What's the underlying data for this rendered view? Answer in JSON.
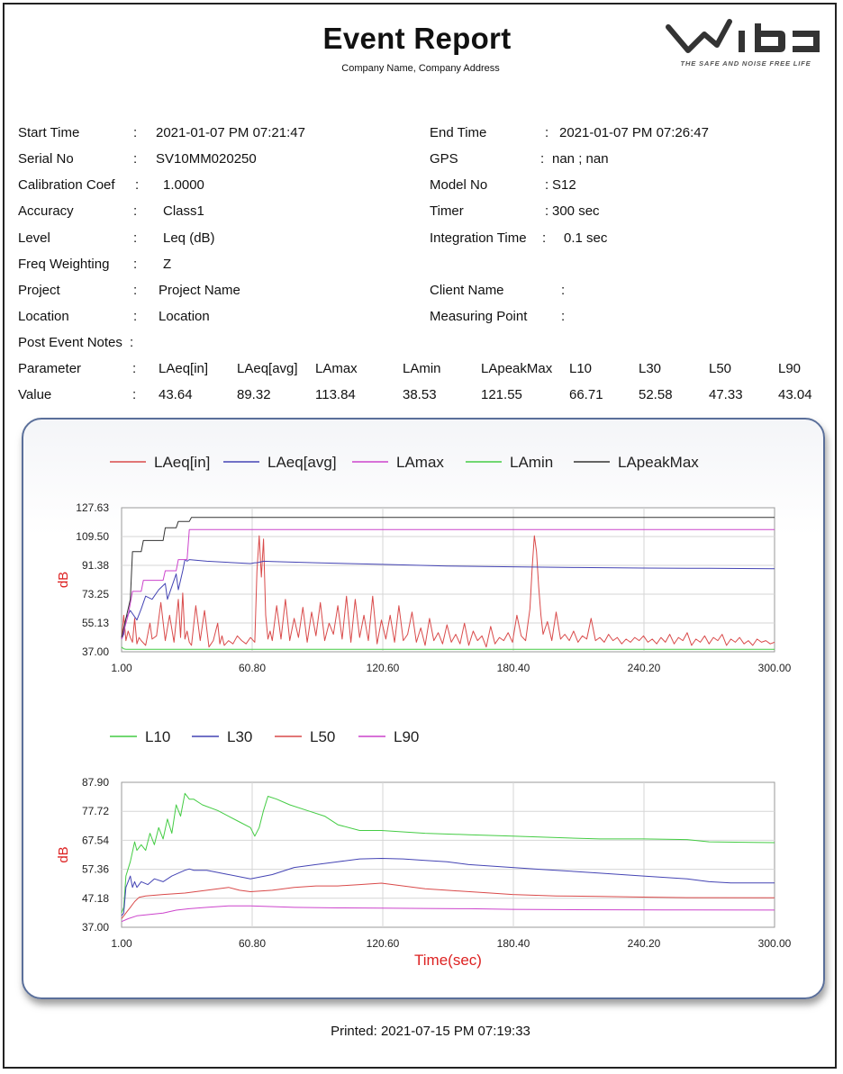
{
  "header": {
    "title": "Event Report",
    "subtitle": "Company Name, Company Address",
    "logo_tagline": "THE SAFE AND NOISE FREE LIFE",
    "logo_text": "ViB"
  },
  "info_left": [
    {
      "label": "Start Time",
      "value": "2021-01-07 PM 07:21:47"
    },
    {
      "label": "Serial No",
      "value": "SV10MM020250"
    },
    {
      "label": "Calibration Coef",
      "value": "1.0000"
    },
    {
      "label": "Accuracy",
      "value": "Class1"
    },
    {
      "label": "Level",
      "value": "Leq (dB)"
    },
    {
      "label": "Freq Weighting",
      "value": "Z"
    },
    {
      "label": "Project",
      "value": "Project Name"
    },
    {
      "label": "Location",
      "value": "Location"
    },
    {
      "label": "Post Event Notes",
      "value": ""
    }
  ],
  "info_right": [
    {
      "label": "End Time",
      "value": "2021-01-07 PM 07:26:47"
    },
    {
      "label": "GPS",
      "value": "nan ; nan"
    },
    {
      "label": "Model No",
      "value": "S12"
    },
    {
      "label": "Timer",
      "value": "300 sec"
    },
    {
      "label": "Integration Time",
      "value": "0.1 sec"
    },
    {
      "label": "Client Name",
      "value": ""
    },
    {
      "label": "Measuring Point",
      "value": ""
    }
  ],
  "colon": ":",
  "params": {
    "label_parameter": "Parameter",
    "label_value": "Value",
    "names": [
      "LAeq[in]",
      "LAeq[avg]",
      "LAmax",
      "LAmin",
      "LApeakMax",
      "L10",
      "L30",
      "L50",
      "L90"
    ],
    "values": [
      "43.64",
      "89.32",
      "113.84",
      "38.53",
      "121.55",
      "66.71",
      "52.58",
      "47.33",
      "43.04"
    ]
  },
  "footer": {
    "printed": "Printed: 2021-07-15 PM 07:19:33"
  },
  "chart_data": [
    {
      "type": "line",
      "ylabel": "dB",
      "xlabel": "",
      "xlim": [
        1.0,
        300.0
      ],
      "ylim": [
        37.0,
        127.63
      ],
      "xticks": [
        "1.00",
        "60.80",
        "120.60",
        "180.40",
        "240.20",
        "300.00"
      ],
      "yticks": [
        "37.00",
        "55.13",
        "73.25",
        "91.38",
        "109.50",
        "127.63"
      ],
      "grid": true,
      "legend_position": "top",
      "series": [
        {
          "name": "LAeq[in]",
          "color": "#d94a4a",
          "x": [
            1,
            2,
            3,
            4,
            5,
            6,
            7,
            8,
            9,
            10,
            12,
            14,
            15,
            17,
            19,
            21,
            23,
            25,
            27,
            28,
            29,
            30,
            31,
            32,
            33,
            35,
            37,
            39,
            41,
            43,
            45,
            46,
            47,
            48,
            50,
            52,
            54,
            56,
            58,
            60,
            62,
            63,
            64,
            65,
            66,
            67,
            68,
            69,
            70,
            72,
            74,
            76,
            78,
            80,
            82,
            84,
            86,
            88,
            90,
            92,
            94,
            96,
            98,
            100,
            102,
            104,
            106,
            108,
            110,
            112,
            114,
            116,
            118,
            120,
            122,
            124,
            126,
            128,
            130,
            132,
            134,
            136,
            138,
            140,
            142,
            144,
            146,
            148,
            150,
            152,
            154,
            156,
            158,
            160,
            162,
            164,
            166,
            168,
            170,
            172,
            174,
            176,
            178,
            180,
            182,
            184,
            186,
            188,
            189,
            190,
            191,
            192,
            193,
            194,
            196,
            198,
            200,
            202,
            204,
            206,
            208,
            210,
            212,
            214,
            216,
            218,
            220,
            222,
            224,
            226,
            228,
            230,
            232,
            234,
            236,
            238,
            240,
            242,
            244,
            246,
            248,
            250,
            252,
            254,
            256,
            258,
            260,
            262,
            264,
            266,
            268,
            270,
            272,
            274,
            276,
            278,
            280,
            282,
            284,
            286,
            288,
            290,
            292,
            294,
            296,
            298,
            300
          ],
          "values": [
            45,
            60,
            44,
            50,
            46,
            43,
            58,
            42,
            46,
            44,
            41,
            55,
            45,
            47,
            68,
            44,
            60,
            43,
            70,
            46,
            74,
            45,
            50,
            43,
            41,
            66,
            44,
            63,
            40,
            44,
            55,
            42,
            47,
            41,
            44,
            42,
            47,
            44,
            42,
            46,
            43,
            88,
            110,
            84,
            108,
            60,
            45,
            50,
            44,
            66,
            45,
            70,
            44,
            58,
            46,
            65,
            43,
            62,
            47,
            68,
            44,
            55,
            48,
            66,
            45,
            72,
            43,
            70,
            46,
            60,
            44,
            72,
            42,
            57,
            45,
            60,
            43,
            66,
            44,
            48,
            62,
            43,
            52,
            41,
            58,
            44,
            49,
            42,
            54,
            43,
            48,
            42,
            55,
            41,
            50,
            44,
            47,
            40,
            53,
            42,
            46,
            44,
            49,
            43,
            60,
            47,
            44,
            64,
            90,
            110,
            100,
            78,
            60,
            48,
            56,
            44,
            62,
            45,
            48,
            44,
            50,
            43,
            47,
            45,
            58,
            44,
            46,
            43,
            48,
            44,
            46,
            42,
            45,
            43,
            46,
            44,
            47,
            43,
            45,
            42,
            46,
            43,
            48,
            42,
            46,
            44,
            49,
            41,
            45,
            43,
            47,
            42,
            46,
            44,
            48,
            41,
            45,
            43,
            46,
            42,
            44,
            41,
            45,
            43,
            44,
            42,
            43
          ]
        },
        {
          "name": "LAeq[avg]",
          "color": "#4444b4",
          "x": [
            1,
            2,
            3,
            5,
            8,
            10,
            12,
            15,
            18,
            21,
            22,
            24,
            26,
            27,
            29,
            30,
            31,
            32,
            40,
            60,
            62,
            63,
            66,
            70,
            90,
            120,
            150,
            180,
            210,
            240,
            270,
            300
          ],
          "values": [
            45,
            48,
            58,
            63,
            57,
            64,
            72,
            70,
            76,
            80,
            70,
            78,
            86,
            76,
            88,
            95,
            94,
            95,
            94,
            92.5,
            93,
            93,
            94,
            93.8,
            93,
            92,
            91,
            90.5,
            90,
            89.7,
            89.5,
            89.3
          ]
        },
        {
          "name": "LAmax",
          "color": "#cc44cc",
          "x": [
            1,
            4,
            6,
            10,
            11,
            20,
            21,
            26,
            27,
            31,
            32,
            300
          ],
          "values": [
            45,
            60,
            75,
            75,
            82,
            82,
            88,
            88,
            95,
            95,
            113.84,
            113.84
          ]
        },
        {
          "name": "LAmin",
          "color": "#44cc44",
          "x": [
            1,
            2,
            3,
            300
          ],
          "values": [
            40,
            38.8,
            38.53,
            38.53
          ]
        },
        {
          "name": "LApeakMax",
          "color": "#333333",
          "x": [
            1,
            5,
            6,
            10,
            11,
            20,
            21,
            26,
            27,
            32,
            33,
            300
          ],
          "values": [
            46,
            70,
            100,
            100,
            107,
            107,
            115,
            115,
            119,
            119,
            121.55,
            121.55
          ]
        }
      ]
    },
    {
      "type": "line",
      "ylabel": "dB",
      "xlabel": "Time(sec)",
      "xlim": [
        1.0,
        300.0
      ],
      "ylim": [
        37.0,
        87.9
      ],
      "xticks": [
        "1.00",
        "60.80",
        "120.60",
        "180.40",
        "240.20",
        "300.00"
      ],
      "yticks": [
        "37.00",
        "47.18",
        "57.36",
        "67.54",
        "77.72",
        "87.90"
      ],
      "grid": true,
      "legend_position": "top",
      "series": [
        {
          "name": "L10",
          "color": "#44cc44",
          "x": [
            1,
            2,
            3,
            5,
            7,
            8,
            10,
            12,
            14,
            16,
            18,
            20,
            22,
            24,
            26,
            28,
            30,
            32,
            34,
            38,
            45,
            55,
            60,
            62,
            64,
            66,
            68,
            72,
            78,
            86,
            94,
            100,
            110,
            120,
            140,
            160,
            180,
            200,
            220,
            240,
            260,
            270,
            290,
            300
          ],
          "values": [
            42,
            44,
            55,
            60,
            67,
            64,
            66,
            64,
            70,
            66,
            72,
            68,
            75,
            70,
            80,
            76,
            84,
            82,
            82,
            80,
            78,
            74,
            72,
            69,
            72,
            78,
            83,
            82,
            80,
            78,
            76,
            73,
            71,
            71,
            70,
            69.5,
            69,
            68.5,
            68,
            68,
            67.8,
            67,
            66.8,
            66.71
          ]
        },
        {
          "name": "L30",
          "color": "#4444b4",
          "x": [
            1,
            2,
            3,
            5,
            6,
            7,
            8,
            10,
            13,
            16,
            20,
            24,
            30,
            32,
            34,
            40,
            50,
            60,
            70,
            80,
            90,
            100,
            110,
            120,
            130,
            140,
            150,
            160,
            170,
            180,
            190,
            200,
            220,
            240,
            260,
            270,
            280,
            300
          ],
          "values": [
            41,
            42,
            51,
            55,
            51,
            53,
            51,
            53,
            52,
            54,
            53,
            55,
            57,
            57.5,
            57,
            57,
            55.5,
            54,
            55.5,
            58,
            59,
            60,
            61,
            61.2,
            61,
            60.5,
            60,
            59,
            58.5,
            58,
            57.5,
            57,
            56,
            55,
            54,
            53,
            52.6,
            52.58
          ]
        },
        {
          "name": "L50",
          "color": "#d94a4a",
          "x": [
            1,
            3,
            5,
            7,
            9,
            12,
            20,
            30,
            40,
            50,
            55,
            60,
            70,
            80,
            90,
            100,
            110,
            120,
            130,
            140,
            150,
            170,
            180,
            200,
            220,
            240,
            260,
            300
          ],
          "values": [
            40,
            42,
            44,
            46,
            47.5,
            48,
            48.5,
            49,
            50,
            51,
            50,
            49.5,
            50,
            51,
            51.5,
            51.5,
            52,
            52.5,
            51.5,
            50.5,
            50,
            49,
            48.5,
            48,
            47.8,
            47.6,
            47.4,
            47.33
          ]
        },
        {
          "name": "L90",
          "color": "#cc44cc",
          "x": [
            1,
            4,
            8,
            14,
            20,
            26,
            32,
            40,
            50,
            60,
            80,
            100,
            120,
            140,
            160,
            180,
            200,
            250,
            300
          ],
          "values": [
            39,
            40,
            41,
            41.5,
            42,
            43,
            43.5,
            44,
            44.5,
            44.5,
            44,
            43.8,
            43.7,
            43.6,
            43.5,
            43.3,
            43.2,
            43.1,
            43.04
          ]
        }
      ]
    }
  ]
}
